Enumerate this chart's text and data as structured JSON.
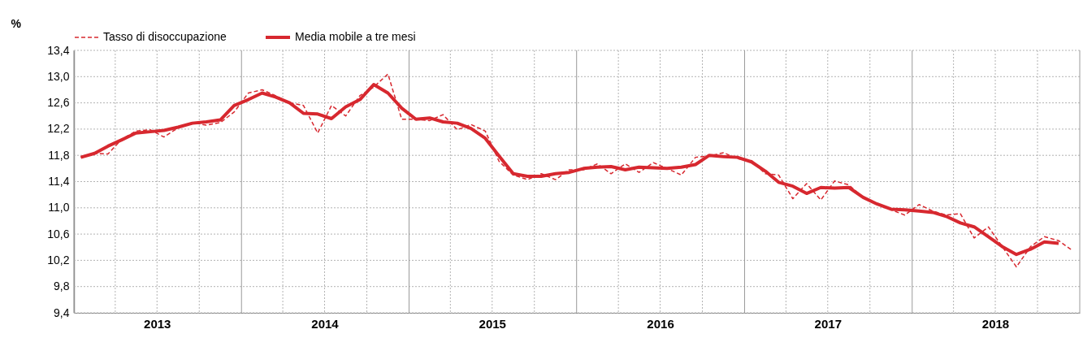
{
  "chart_data": {
    "type": "line",
    "ylabel": "%",
    "x": [
      "2013-01-16",
      "2013-02-15",
      "2013-03-16",
      "2013-04-16",
      "2013-05-16",
      "2013-06-16",
      "2013-07-16",
      "2013-08-16",
      "2013-09-16",
      "2013-10-16",
      "2013-11-16",
      "2013-12-16",
      "2014-01-16",
      "2014-02-15",
      "2014-03-16",
      "2014-04-16",
      "2014-05-16",
      "2014-06-16",
      "2014-07-16",
      "2014-08-16",
      "2014-09-16",
      "2014-10-16",
      "2014-11-16",
      "2014-12-16",
      "2015-01-16",
      "2015-02-15",
      "2015-03-16",
      "2015-04-16",
      "2015-05-16",
      "2015-06-16",
      "2015-07-16",
      "2015-08-16",
      "2015-09-16",
      "2015-10-16",
      "2015-11-16",
      "2015-12-16",
      "2016-01-16",
      "2016-02-15",
      "2016-03-16",
      "2016-04-16",
      "2016-05-16",
      "2016-06-16",
      "2016-07-16",
      "2016-08-16",
      "2016-09-16",
      "2016-10-16",
      "2016-11-16",
      "2016-12-16",
      "2017-01-16",
      "2017-02-15",
      "2017-03-16",
      "2017-04-16",
      "2017-05-16",
      "2017-06-16",
      "2017-07-16",
      "2017-08-16",
      "2017-09-16",
      "2017-10-16",
      "2017-11-16",
      "2017-12-16",
      "2018-01-16",
      "2018-02-15",
      "2018-03-16",
      "2018-04-16",
      "2018-05-16",
      "2018-06-16",
      "2018-07-16",
      "2018-08-16",
      "2018-09-16",
      "2018-10-16",
      "2018-11-16",
      "2018-12-16"
    ],
    "series": [
      {
        "name": "Tasso di disoccupazione",
        "color": "#d7282f",
        "line_style": "dashed",
        "values": [
          11.77,
          11.83,
          11.82,
          12.05,
          12.17,
          12.19,
          12.08,
          12.22,
          12.3,
          12.26,
          12.3,
          12.46,
          12.75,
          12.8,
          12.71,
          12.6,
          12.56,
          12.14,
          12.56,
          12.4,
          12.71,
          12.84,
          13.04,
          12.35,
          12.35,
          12.33,
          12.42,
          12.19,
          12.27,
          12.17,
          11.71,
          11.5,
          11.43,
          11.52,
          11.43,
          11.58,
          11.58,
          11.67,
          11.52,
          11.67,
          11.54,
          11.69,
          11.6,
          11.5,
          11.77,
          11.79,
          11.84,
          11.75,
          11.72,
          11.52,
          11.5,
          11.14,
          11.37,
          11.12,
          11.41,
          11.35,
          11.16,
          11.06,
          10.97,
          10.89,
          11.05,
          10.95,
          10.89,
          10.91,
          10.54,
          10.71,
          10.41,
          10.1,
          10.41,
          10.56,
          10.5,
          10.35
        ]
      },
      {
        "name": "Media mobile a tre mesi",
        "color": "#d7282f",
        "line_style": "solid",
        "values": [
          11.77,
          11.83,
          11.94,
          12.04,
          12.14,
          12.16,
          12.18,
          12.23,
          12.29,
          12.31,
          12.34,
          12.56,
          12.65,
          12.75,
          12.69,
          12.6,
          12.44,
          12.43,
          12.36,
          12.54,
          12.65,
          12.88,
          12.75,
          12.52,
          12.35,
          12.37,
          12.31,
          12.29,
          12.21,
          12.06,
          11.79,
          11.52,
          11.48,
          11.48,
          11.52,
          11.54,
          11.6,
          11.62,
          11.63,
          11.58,
          11.62,
          11.61,
          11.6,
          11.62,
          11.66,
          11.8,
          11.78,
          11.77,
          11.7,
          11.56,
          11.39,
          11.33,
          11.22,
          11.31,
          11.3,
          11.31,
          11.16,
          11.06,
          10.98,
          10.97,
          10.95,
          10.93,
          10.87,
          10.77,
          10.71,
          10.56,
          10.41,
          10.29,
          10.37,
          10.48,
          10.46,
          null
        ]
      }
    ],
    "xlim": [
      "2013-01-01",
      "2019-01-01"
    ],
    "xticks": [
      {
        "value": "2013-01-01",
        "label": null
      },
      {
        "value": "2013-04-01",
        "label": null
      },
      {
        "value": "2013-07-01",
        "label": "2013"
      },
      {
        "value": "2013-10-01",
        "label": null
      },
      {
        "value": "2014-01-01",
        "label": null
      },
      {
        "value": "2014-04-01",
        "label": null
      },
      {
        "value": "2014-07-01",
        "label": "2014"
      },
      {
        "value": "2014-10-01",
        "label": null
      },
      {
        "value": "2015-01-01",
        "label": null
      },
      {
        "value": "2015-04-01",
        "label": null
      },
      {
        "value": "2015-07-01",
        "label": "2015"
      },
      {
        "value": "2015-10-01",
        "label": null
      },
      {
        "value": "2016-01-01",
        "label": null
      },
      {
        "value": "2016-04-01",
        "label": null
      },
      {
        "value": "2016-07-01",
        "label": "2016"
      },
      {
        "value": "2016-10-01",
        "label": null
      },
      {
        "value": "2017-01-01",
        "label": null
      },
      {
        "value": "2017-04-01",
        "label": null
      },
      {
        "value": "2017-07-01",
        "label": "2017"
      },
      {
        "value": "2017-10-01",
        "label": null
      },
      {
        "value": "2018-01-01",
        "label": null
      },
      {
        "value": "2018-04-01",
        "label": null
      },
      {
        "value": "2018-07-01",
        "label": "2018"
      },
      {
        "value": "2018-10-01",
        "label": null
      },
      {
        "value": "2019-01-01",
        "label": null
      }
    ],
    "ylim": [
      9.4,
      13.4
    ],
    "yticks": [
      {
        "value": 9.4,
        "label": "9,4"
      },
      {
        "value": 9.8,
        "label": "9,8"
      },
      {
        "value": 10.2,
        "label": "10,2"
      },
      {
        "value": 10.6,
        "label": "10,6"
      },
      {
        "value": 11.0,
        "label": "11,0"
      },
      {
        "value": 11.4,
        "label": "11,4"
      },
      {
        "value": 11.8,
        "label": "11,8"
      },
      {
        "value": 12.2,
        "label": "12,2"
      },
      {
        "value": 12.6,
        "label": "12,6"
      },
      {
        "value": 13.0,
        "label": "13,0"
      },
      {
        "value": 13.4,
        "label": "13,4"
      }
    ],
    "grid": true,
    "legend": "top"
  }
}
